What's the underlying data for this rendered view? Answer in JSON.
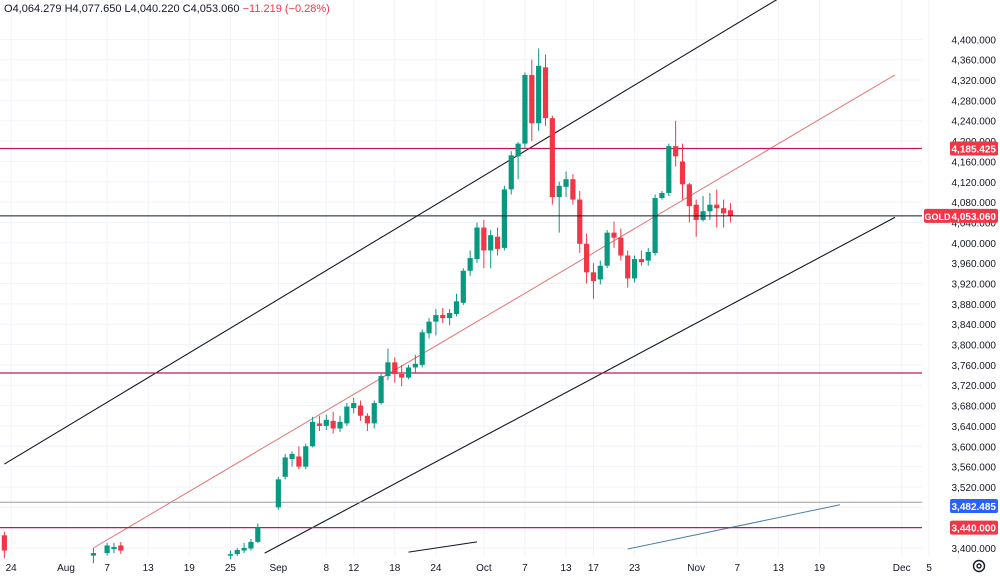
{
  "header": {
    "open_label": "O",
    "open": "4,064.279",
    "high_label": "H",
    "high": "4,077.650",
    "low_label": "L",
    "low": "4,040.220",
    "close_label": "C",
    "close": "4,053.060",
    "change": "−11.219 (−0.28%)"
  },
  "colors": {
    "up": "#089981",
    "down": "#f23645",
    "grid": "#f0f3fa",
    "level_red": "#c2185b",
    "level_gray": "#9e9e9e",
    "price_line": "#131722",
    "gold_tag": "#f23645",
    "blue_tag": "#2962ff",
    "channel": "#131722",
    "mid_channel": "#e57373"
  },
  "chart_data": {
    "type": "candlestick",
    "symbol_tag": "GOLD",
    "ylim": [
      3400,
      4440
    ],
    "y_ticks": [
      "4,400.000",
      "4,360.000",
      "4,320.000",
      "4,280.000",
      "4,240.000",
      "4,200.000",
      "4,160.000",
      "4,120.000",
      "4,080.000",
      "4,040.000",
      "4,000.000",
      "3,960.000",
      "3,920.000",
      "3,880.000",
      "3,840.000",
      "3,800.000",
      "3,760.000",
      "3,720.000",
      "3,680.000",
      "3,640.000",
      "3,600.000",
      "3,560.000",
      "3,520.000",
      "3,480.000",
      "3,440.000",
      "3,400.000"
    ],
    "x_ticks": [
      {
        "label": "24",
        "day": -8
      },
      {
        "label": "Aug",
        "day": 0
      },
      {
        "label": "7",
        "day": 6
      },
      {
        "label": "13",
        "day": 12
      },
      {
        "label": "19",
        "day": 18
      },
      {
        "label": "25",
        "day": 24
      },
      {
        "label": "Sep",
        "day": 31
      },
      {
        "label": "8",
        "day": 38
      },
      {
        "label": "12",
        "day": 42
      },
      {
        "label": "18",
        "day": 48
      },
      {
        "label": "24",
        "day": 54
      },
      {
        "label": "Oct",
        "day": 61
      },
      {
        "label": "7",
        "day": 67
      },
      {
        "label": "13",
        "day": 73
      },
      {
        "label": "17",
        "day": 77
      },
      {
        "label": "23",
        "day": 83
      },
      {
        "label": "Nov",
        "day": 92
      },
      {
        "label": "7",
        "day": 98
      },
      {
        "label": "13",
        "day": 104
      },
      {
        "label": "19",
        "day": 110
      },
      {
        "label": "Dec",
        "day": 122
      },
      {
        "label": "5",
        "day": 126
      }
    ],
    "candles": [
      {
        "d": -9,
        "o": 3425,
        "h": 3432,
        "l": 3380,
        "c": 3395
      },
      {
        "d": 4,
        "o": 3385,
        "h": 3400,
        "l": 3370,
        "c": 3390
      },
      {
        "d": 6,
        "o": 3390,
        "h": 3410,
        "l": 3385,
        "c": 3405
      },
      {
        "d": 7,
        "o": 3398,
        "h": 3410,
        "l": 3390,
        "c": 3402
      },
      {
        "d": 8,
        "o": 3405,
        "h": 3412,
        "l": 3388,
        "c": 3395
      },
      {
        "d": 24,
        "o": 3385,
        "h": 3395,
        "l": 3378,
        "c": 3388
      },
      {
        "d": 25,
        "o": 3388,
        "h": 3400,
        "l": 3384,
        "c": 3396
      },
      {
        "d": 26,
        "o": 3395,
        "h": 3410,
        "l": 3390,
        "c": 3400
      },
      {
        "d": 27,
        "o": 3399,
        "h": 3418,
        "l": 3395,
        "c": 3412
      },
      {
        "d": 28,
        "o": 3412,
        "h": 3448,
        "l": 3410,
        "c": 3440
      },
      {
        "d": 31,
        "o": 3480,
        "h": 3540,
        "l": 3475,
        "c": 3535
      },
      {
        "d": 32,
        "o": 3540,
        "h": 3585,
        "l": 3535,
        "c": 3578
      },
      {
        "d": 33,
        "o": 3575,
        "h": 3590,
        "l": 3560,
        "c": 3585
      },
      {
        "d": 34,
        "o": 3580,
        "h": 3600,
        "l": 3555,
        "c": 3560
      },
      {
        "d": 35,
        "o": 3560,
        "h": 3605,
        "l": 3555,
        "c": 3600
      },
      {
        "d": 36,
        "o": 3600,
        "h": 3658,
        "l": 3598,
        "c": 3648
      },
      {
        "d": 37,
        "o": 3645,
        "h": 3660,
        "l": 3630,
        "c": 3640
      },
      {
        "d": 38,
        "o": 3640,
        "h": 3662,
        "l": 3632,
        "c": 3652
      },
      {
        "d": 39,
        "o": 3650,
        "h": 3668,
        "l": 3625,
        "c": 3635
      },
      {
        "d": 40,
        "o": 3635,
        "h": 3660,
        "l": 3628,
        "c": 3648
      },
      {
        "d": 41,
        "o": 3645,
        "h": 3685,
        "l": 3640,
        "c": 3678
      },
      {
        "d": 42,
        "o": 3675,
        "h": 3695,
        "l": 3665,
        "c": 3685
      },
      {
        "d": 43,
        "o": 3680,
        "h": 3690,
        "l": 3650,
        "c": 3660
      },
      {
        "d": 44,
        "o": 3660,
        "h": 3665,
        "l": 3630,
        "c": 3645
      },
      {
        "d": 45,
        "o": 3645,
        "h": 3690,
        "l": 3635,
        "c": 3685
      },
      {
        "d": 46,
        "o": 3685,
        "h": 3742,
        "l": 3682,
        "c": 3738
      },
      {
        "d": 47,
        "o": 3738,
        "h": 3792,
        "l": 3730,
        "c": 3765
      },
      {
        "d": 48,
        "o": 3765,
        "h": 3775,
        "l": 3725,
        "c": 3742
      },
      {
        "d": 49,
        "o": 3742,
        "h": 3760,
        "l": 3718,
        "c": 3735
      },
      {
        "d": 50,
        "o": 3735,
        "h": 3760,
        "l": 3732,
        "c": 3755
      },
      {
        "d": 51,
        "o": 3755,
        "h": 3780,
        "l": 3745,
        "c": 3762
      },
      {
        "d": 52,
        "o": 3760,
        "h": 3830,
        "l": 3755,
        "c": 3824
      },
      {
        "d": 53,
        "o": 3822,
        "h": 3852,
        "l": 3812,
        "c": 3845
      },
      {
        "d": 54,
        "o": 3845,
        "h": 3870,
        "l": 3818,
        "c": 3858
      },
      {
        "d": 55,
        "o": 3858,
        "h": 3872,
        "l": 3842,
        "c": 3852
      },
      {
        "d": 56,
        "o": 3852,
        "h": 3870,
        "l": 3838,
        "c": 3862
      },
      {
        "d": 57,
        "o": 3860,
        "h": 3900,
        "l": 3855,
        "c": 3885
      },
      {
        "d": 58,
        "o": 3882,
        "h": 3950,
        "l": 3878,
        "c": 3945
      },
      {
        "d": 59,
        "o": 3945,
        "h": 3985,
        "l": 3935,
        "c": 3970
      },
      {
        "d": 60,
        "o": 3968,
        "h": 4040,
        "l": 3960,
        "c": 4030
      },
      {
        "d": 61,
        "o": 4030,
        "h": 4045,
        "l": 3950,
        "c": 3985
      },
      {
        "d": 62,
        "o": 3985,
        "h": 4025,
        "l": 3950,
        "c": 4015
      },
      {
        "d": 63,
        "o": 4012,
        "h": 4030,
        "l": 3975,
        "c": 3988
      },
      {
        "d": 64,
        "o": 3990,
        "h": 4112,
        "l": 3985,
        "c": 4105
      },
      {
        "d": 65,
        "o": 4105,
        "h": 4180,
        "l": 4095,
        "c": 4172
      },
      {
        "d": 66,
        "o": 4170,
        "h": 4198,
        "l": 4125,
        "c": 4195
      },
      {
        "d": 67,
        "o": 4195,
        "h": 4335,
        "l": 4185,
        "c": 4330
      },
      {
        "d": 68,
        "o": 4330,
        "h": 4360,
        "l": 4200,
        "c": 4235
      },
      {
        "d": 69,
        "o": 4235,
        "h": 4382,
        "l": 4220,
        "c": 4348
      },
      {
        "d": 70,
        "o": 4345,
        "h": 4370,
        "l": 4230,
        "c": 4245
      },
      {
        "d": 71,
        "o": 4245,
        "h": 4250,
        "l": 4075,
        "c": 4090
      },
      {
        "d": 72,
        "o": 4090,
        "h": 4120,
        "l": 4020,
        "c": 4112
      },
      {
        "d": 73,
        "o": 4110,
        "h": 4140,
        "l": 4090,
        "c": 4125
      },
      {
        "d": 74,
        "o": 4125,
        "h": 4135,
        "l": 4075,
        "c": 4085
      },
      {
        "d": 75,
        "o": 4085,
        "h": 4102,
        "l": 3980,
        "c": 3998
      },
      {
        "d": 76,
        "o": 3998,
        "h": 4018,
        "l": 3920,
        "c": 3942
      },
      {
        "d": 77,
        "o": 3942,
        "h": 3960,
        "l": 3890,
        "c": 3925
      },
      {
        "d": 78,
        "o": 3928,
        "h": 3965,
        "l": 3918,
        "c": 3955
      },
      {
        "d": 79,
        "o": 3955,
        "h": 4025,
        "l": 3950,
        "c": 4020
      },
      {
        "d": 80,
        "o": 4020,
        "h": 4042,
        "l": 3990,
        "c": 4010
      },
      {
        "d": 81,
        "o": 4010,
        "h": 4028,
        "l": 3965,
        "c": 3975
      },
      {
        "d": 82,
        "o": 3975,
        "h": 3985,
        "l": 3912,
        "c": 3930
      },
      {
        "d": 83,
        "o": 3930,
        "h": 3975,
        "l": 3922,
        "c": 3968
      },
      {
        "d": 84,
        "o": 3968,
        "h": 3985,
        "l": 3955,
        "c": 3962
      },
      {
        "d": 85,
        "o": 3965,
        "h": 3990,
        "l": 3955,
        "c": 3982
      },
      {
        "d": 86,
        "o": 3980,
        "h": 4095,
        "l": 3975,
        "c": 4088
      },
      {
        "d": 87,
        "o": 4088,
        "h": 4102,
        "l": 4085,
        "c": 4098
      },
      {
        "d": 88,
        "o": 4098,
        "h": 4195,
        "l": 4092,
        "c": 4190
      },
      {
        "d": 89,
        "o": 4190,
        "h": 4240,
        "l": 4150,
        "c": 4170
      },
      {
        "d": 90,
        "o": 4160,
        "h": 4195,
        "l": 4085,
        "c": 4115
      },
      {
        "d": 91,
        "o": 4115,
        "h": 4118,
        "l": 4040,
        "c": 4072
      },
      {
        "d": 92,
        "o": 4075,
        "h": 4085,
        "l": 4012,
        "c": 4045
      },
      {
        "d": 93,
        "o": 4045,
        "h": 4092,
        "l": 4042,
        "c": 4062
      },
      {
        "d": 94,
        "o": 4062,
        "h": 4098,
        "l": 4045,
        "c": 4075
      },
      {
        "d": 95,
        "o": 4075,
        "h": 4105,
        "l": 4030,
        "c": 4068
      },
      {
        "d": 96,
        "o": 4068,
        "h": 4085,
        "l": 4030,
        "c": 4058
      },
      {
        "d": 97,
        "o": 4064,
        "h": 4078,
        "l": 4040,
        "c": 4053
      }
    ],
    "levels": [
      {
        "value": 4185.425,
        "label": "4,185.425",
        "color": "#c2185b",
        "tag_color": "#f23645"
      },
      {
        "value": 3744,
        "label": "",
        "color": "#c2185b",
        "tag_color": ""
      },
      {
        "value": 3490,
        "label": "",
        "color": "#9e9e9e",
        "tag_color": ""
      },
      {
        "value": 3440,
        "label": "3,440.000",
        "color": "#c2185b",
        "tag_color": "#f23645"
      }
    ],
    "current_price": {
      "value": 4053.06,
      "label": "4,053.060"
    },
    "indicator_tag": {
      "value": 3482.485,
      "label": "3,482.485"
    },
    "channel_upper": [
      {
        "d": -9,
        "v": 3565
      },
      {
        "d": 104,
        "v": 4480
      }
    ],
    "channel_mid": [
      {
        "d": 4,
        "v": 3400
      },
      {
        "d": 121,
        "v": 4330
      }
    ],
    "channel_lower": [
      {
        "d": 29,
        "v": 3390
      },
      {
        "d": 121,
        "v": 4050
      }
    ],
    "blue_line": [
      {
        "d": 82,
        "v": 3398
      },
      {
        "d": 113,
        "v": 3485
      }
    ],
    "dark_short_line": [
      {
        "d": 50,
        "v": 3392
      },
      {
        "d": 60,
        "v": 3412
      }
    ]
  }
}
